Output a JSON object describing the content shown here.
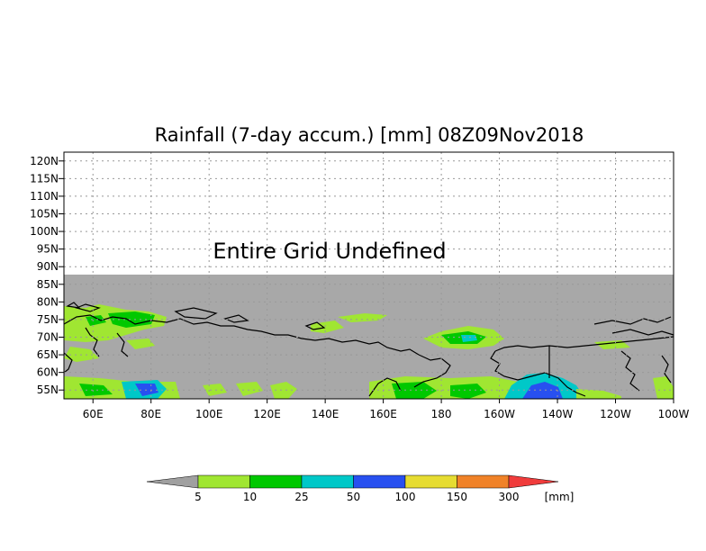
{
  "title": "Rainfall (7-day accum.) [mm] 08Z09Nov2018",
  "overlay_message": "Entire Grid Undefined",
  "lat_ticks": [
    "120N",
    "115N",
    "110N",
    "105N",
    "100N",
    "95N",
    "90N",
    "85N",
    "80N",
    "75N",
    "70N",
    "65N",
    "60N",
    "55N"
  ],
  "lon_ticks": [
    "60E",
    "80E",
    "100E",
    "120E",
    "140E",
    "160E",
    "180",
    "160W",
    "140W",
    "120W",
    "100W"
  ],
  "colorbar": {
    "unit": "[mm]",
    "tick_labels": [
      "5",
      "10",
      "25",
      "50",
      "100",
      "150",
      "300"
    ],
    "colors": {
      "below": "#a0a0a0",
      "bins": [
        "#a0e632",
        "#00c800",
        "#00c8c8",
        "#2850f0",
        "#e6dc32",
        "#f08228"
      ],
      "above": "#f03c3c"
    }
  },
  "colors": {
    "undefined": "#a8a8a8",
    "light": "#a0e632",
    "green": "#00c800",
    "teal": "#00c8c8",
    "blue": "#2850f0",
    "coast": "#000000",
    "grid": "#999999"
  }
}
